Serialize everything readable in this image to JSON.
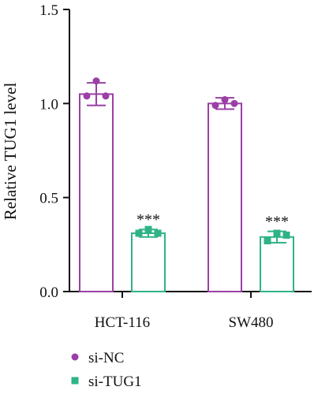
{
  "chart_data": {
    "type": "bar",
    "title": "",
    "xlabel": "",
    "ylabel": "Relative TUG1 level",
    "ylim": [
      0,
      1.5
    ],
    "yticks": [
      "0.0",
      "0.5",
      "1.0",
      "1.5"
    ],
    "ytick_values": [
      0,
      0.5,
      1.0,
      1.5
    ],
    "categories": [
      "HCT-116",
      "SW480"
    ],
    "legend_position": "bottom-left",
    "grid": false,
    "series": [
      {
        "name": "si-NC",
        "color": "#9b3fa6",
        "marker": "circle",
        "values": [
          1.05,
          1.0
        ],
        "errors": [
          0.06,
          0.03
        ],
        "points": [
          [
            1.04,
            1.12,
            1.04
          ],
          [
            0.99,
            1.02,
            1.0
          ]
        ]
      },
      {
        "name": "si-TUG1",
        "color": "#2fb386",
        "marker": "square",
        "values": [
          0.31,
          0.29
        ],
        "errors": [
          0.02,
          0.03
        ],
        "points": [
          [
            0.31,
            0.33,
            0.31
          ],
          [
            0.27,
            0.31,
            0.3
          ]
        ]
      }
    ],
    "annotations": [
      {
        "category": "HCT-116",
        "series": "si-TUG1",
        "text": "***"
      },
      {
        "category": "SW480",
        "series": "si-TUG1",
        "text": "***"
      }
    ]
  }
}
